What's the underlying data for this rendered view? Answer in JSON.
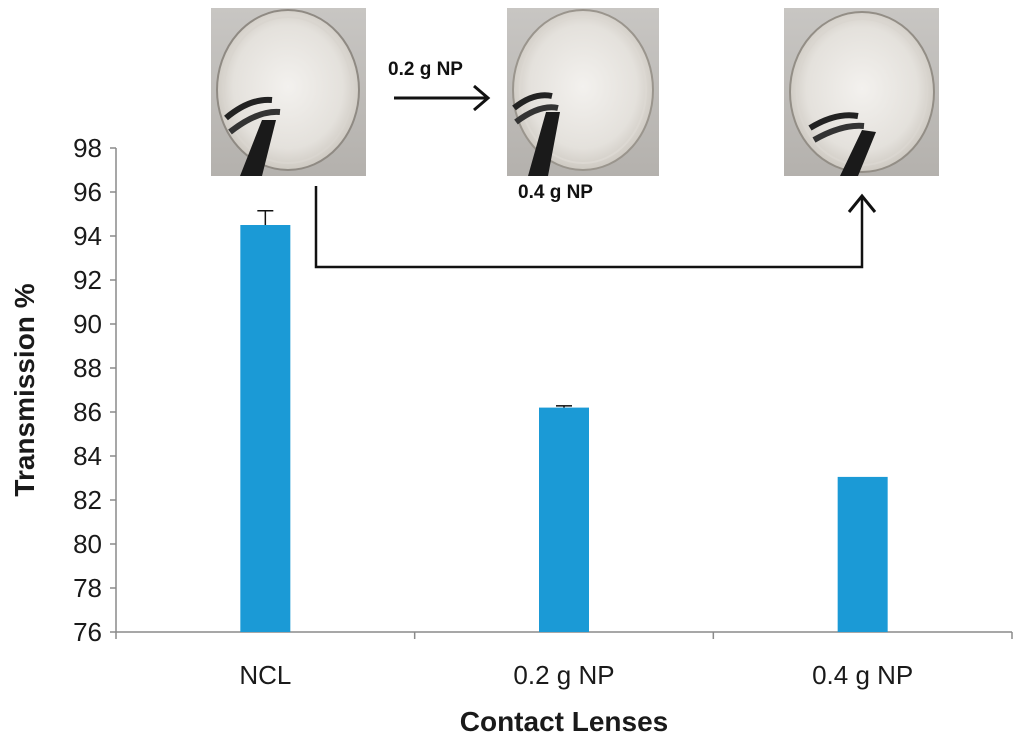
{
  "chart_data": {
    "type": "bar",
    "categories": [
      "NCL",
      "0.2 g NP",
      "0.4 g NP"
    ],
    "values": [
      94.5,
      86.2,
      83.05
    ],
    "error_bars": [
      0.65,
      0.08,
      0
    ],
    "xlabel": "Contact Lenses",
    "ylabel": "Transmission %",
    "ylim": [
      76,
      98
    ],
    "yticks": [
      "76",
      "78",
      "80",
      "82",
      "84",
      "86",
      "88",
      "90",
      "92",
      "94",
      "96",
      "98"
    ],
    "bar_color": "#1b9ad6",
    "grid": false,
    "legend": "none"
  },
  "annotations": {
    "arrow_label_1": "0.2 g NP",
    "arrow_label_2": "0.4 g NP"
  },
  "photos": [
    {
      "subject": "NCL contact lens held by tweezers"
    },
    {
      "subject": "0.2 g NP contact lens held by tweezers"
    },
    {
      "subject": "0.4 g NP contact lens held by tweezers"
    }
  ]
}
